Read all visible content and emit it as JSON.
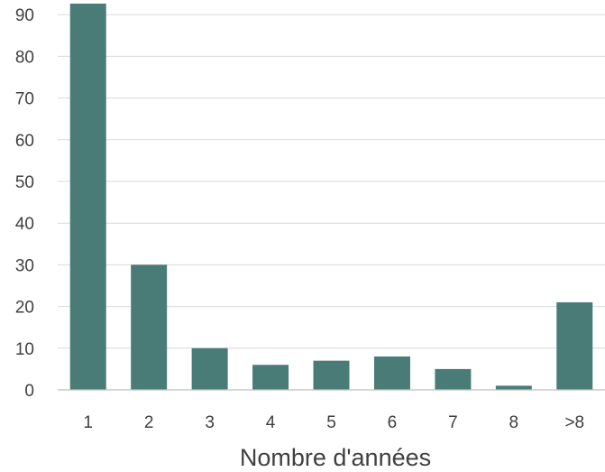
{
  "chart_data": {
    "type": "bar",
    "categories": [
      "1",
      "2",
      "3",
      "4",
      "5",
      "6",
      "7",
      "8",
      ">8"
    ],
    "values": [
      93,
      30,
      10,
      6,
      7,
      8,
      5,
      1,
      21
    ],
    "xlabel": "Nombre d'années",
    "ylabel": "",
    "ylim": [
      0,
      90
    ],
    "yticks": [
      0,
      10,
      20,
      30,
      40,
      50,
      60,
      70,
      80,
      90
    ],
    "grid": true,
    "legend": "none",
    "bar_color": "#4a7c77"
  }
}
